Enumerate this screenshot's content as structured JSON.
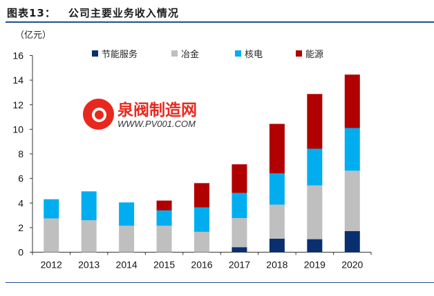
{
  "header": {
    "label": "图表13：",
    "title": "公司主要业务收入情况",
    "unit": "（亿元）"
  },
  "watermark": {
    "name": "泉阀制造网",
    "url": "WWW.PV001.COM"
  },
  "chart_data": {
    "type": "bar",
    "stacked": true,
    "title": "公司主要业务收入情况",
    "ylabel": "（亿元）",
    "xlabel": "",
    "ylim": [
      0,
      16
    ],
    "yticks": [
      0,
      2,
      4,
      6,
      8,
      10,
      12,
      14,
      16
    ],
    "grid": false,
    "legend_position": "top",
    "categories": [
      "2012",
      "2013",
      "2014",
      "2015",
      "2016",
      "2017",
      "2018",
      "2019",
      "2020"
    ],
    "series": [
      {
        "name": "节能服务",
        "color": "#0a2f6e",
        "values": [
          0,
          0,
          0,
          0,
          0,
          0.41,
          1.1,
          1.06,
          1.72
        ]
      },
      {
        "name": "冶金",
        "color": "#bfbfbf",
        "values": [
          2.75,
          2.6,
          2.15,
          2.15,
          1.66,
          2.37,
          2.77,
          4.37,
          4.91
        ]
      },
      {
        "name": "核电",
        "color": "#00aeef",
        "values": [
          1.56,
          2.35,
          1.9,
          1.25,
          1.98,
          2.04,
          2.54,
          2.99,
          3.47
        ]
      },
      {
        "name": "能源",
        "color": "#b00000",
        "values": [
          0,
          0,
          0,
          0.8,
          1.98,
          2.33,
          4.03,
          4.45,
          4.35
        ]
      }
    ]
  }
}
